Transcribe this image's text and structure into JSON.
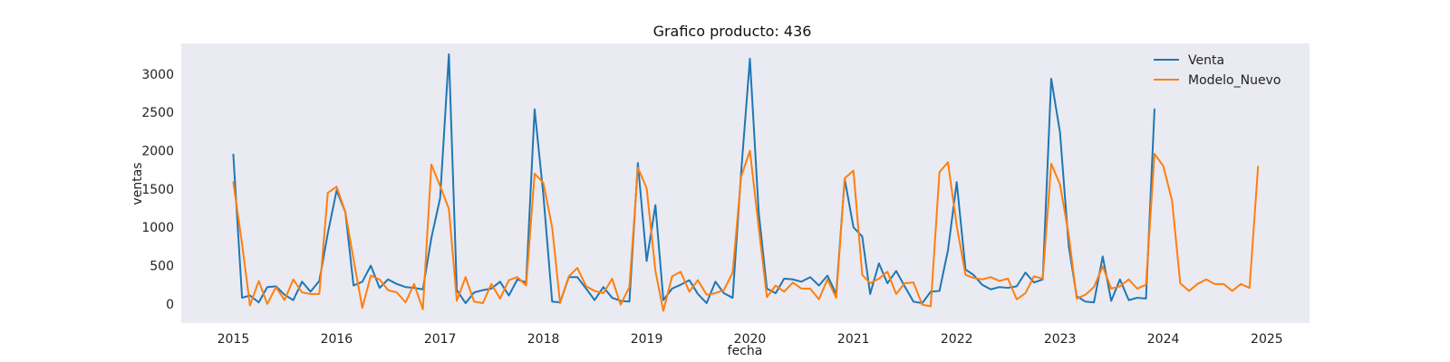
{
  "chart_data": {
    "type": "line",
    "title": "Grafico producto: 436",
    "xlabel": "fecha",
    "ylabel": "ventas",
    "xlim": [
      "2014-07-01",
      "2025-06-01"
    ],
    "ylim": [
      -250,
      3400
    ],
    "xticks": [
      {
        "date": "2015-01-01",
        "label": "2015"
      },
      {
        "date": "2016-01-01",
        "label": "2016"
      },
      {
        "date": "2017-01-01",
        "label": "2017"
      },
      {
        "date": "2018-01-01",
        "label": "2018"
      },
      {
        "date": "2019-01-01",
        "label": "2019"
      },
      {
        "date": "2020-01-01",
        "label": "2020"
      },
      {
        "date": "2021-01-01",
        "label": "2021"
      },
      {
        "date": "2022-01-01",
        "label": "2022"
      },
      {
        "date": "2023-01-01",
        "label": "2023"
      },
      {
        "date": "2024-01-01",
        "label": "2024"
      },
      {
        "date": "2025-01-01",
        "label": "2025"
      }
    ],
    "yticks": [
      0,
      500,
      1000,
      1500,
      2000,
      2500,
      3000
    ],
    "grid": false,
    "legend_position": "top-right",
    "series": [
      {
        "name": "Venta",
        "color": "#1f77b4",
        "start": "2015-01",
        "values": [
          1950,
          80,
          110,
          20,
          220,
          230,
          120,
          50,
          290,
          160,
          300,
          920,
          1480,
          1200,
          240,
          290,
          500,
          210,
          320,
          260,
          220,
          210,
          190,
          860,
          1380,
          3260,
          180,
          10,
          150,
          180,
          200,
          290,
          110,
          320,
          280,
          2540,
          1420,
          30,
          20,
          350,
          350,
          200,
          50,
          220,
          80,
          40,
          30,
          1840,
          560,
          1290,
          50,
          200,
          250,
          310,
          130,
          10,
          290,
          140,
          80,
          1720,
          3200,
          1200,
          200,
          140,
          330,
          320,
          290,
          350,
          240,
          370,
          130,
          1630,
          1000,
          880,
          130,
          530,
          270,
          430,
          230,
          30,
          10,
          160,
          170,
          700,
          1590,
          450,
          380,
          250,
          190,
          220,
          210,
          230,
          410,
          280,
          320,
          2940,
          2240,
          750,
          100,
          30,
          20,
          620,
          40,
          320,
          50,
          80,
          70,
          2540
        ]
      },
      {
        "name": "Modelo_Nuevo",
        "color": "#ff7f0e",
        "start": "2015-01",
        "values": [
          1590,
          780,
          -20,
          300,
          0,
          220,
          50,
          320,
          150,
          130,
          130,
          1450,
          1530,
          1200,
          580,
          -50,
          370,
          320,
          180,
          150,
          20,
          260,
          -70,
          1820,
          1540,
          1240,
          40,
          350,
          30,
          10,
          260,
          70,
          310,
          350,
          240,
          1700,
          1580,
          1000,
          10,
          360,
          470,
          230,
          170,
          140,
          330,
          -10,
          220,
          1780,
          1510,
          430,
          -90,
          360,
          420,
          160,
          310,
          120,
          140,
          180,
          410,
          1660,
          2000,
          1000,
          90,
          240,
          160,
          280,
          200,
          200,
          60,
          320,
          80,
          1640,
          1740,
          380,
          270,
          330,
          420,
          130,
          270,
          280,
          -10,
          -30,
          1720,
          1850,
          1020,
          380,
          340,
          320,
          350,
          300,
          330,
          60,
          140,
          360,
          330,
          1830,
          1560,
          900,
          70,
          120,
          220,
          490,
          200,
          230,
          320,
          200,
          250,
          1960,
          1800,
          1350,
          270,
          170,
          260,
          320,
          260,
          260,
          170,
          260,
          210,
          1790
        ]
      }
    ]
  }
}
